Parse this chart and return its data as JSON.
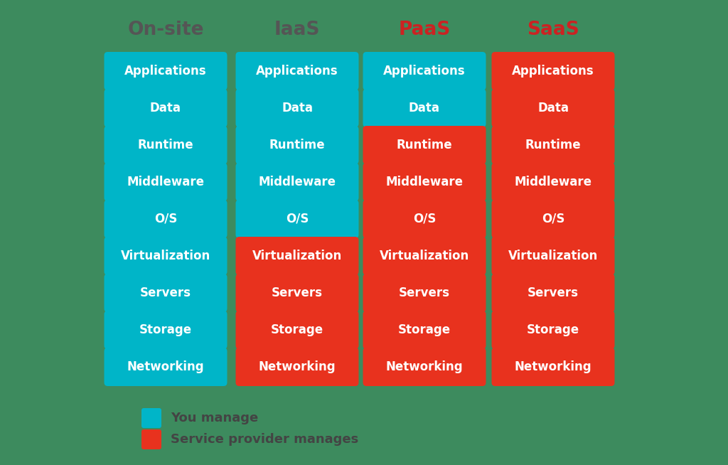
{
  "background_color": "#3d8b5e",
  "columns": [
    "On-site",
    "IaaS",
    "PaaS",
    "SaaS"
  ],
  "column_header_colors": [
    "#555555",
    "#555555",
    "#cc2222",
    "#cc2222"
  ],
  "rows": [
    "Applications",
    "Data",
    "Runtime",
    "Middleware",
    "O/S",
    "Virtualization",
    "Servers",
    "Storage",
    "Networking"
  ],
  "cyan": "#00b5c8",
  "red": "#e8321e",
  "cell_colors": [
    [
      "cyan",
      "cyan",
      "cyan",
      "red"
    ],
    [
      "cyan",
      "cyan",
      "cyan",
      "red"
    ],
    [
      "cyan",
      "cyan",
      "red",
      "red"
    ],
    [
      "cyan",
      "cyan",
      "red",
      "red"
    ],
    [
      "cyan",
      "cyan",
      "red",
      "red"
    ],
    [
      "cyan",
      "red",
      "red",
      "red"
    ],
    [
      "cyan",
      "red",
      "red",
      "red"
    ],
    [
      "cyan",
      "red",
      "red",
      "red"
    ],
    [
      "cyan",
      "red",
      "red",
      "red"
    ]
  ],
  "legend_cyan_label": "You manage",
  "legend_red_label": "Service provider manages",
  "text_color": "#ffffff",
  "header_fontsize": 19,
  "cell_fontsize": 12,
  "legend_fontsize": 13,
  "legend_text_color": "#444444"
}
